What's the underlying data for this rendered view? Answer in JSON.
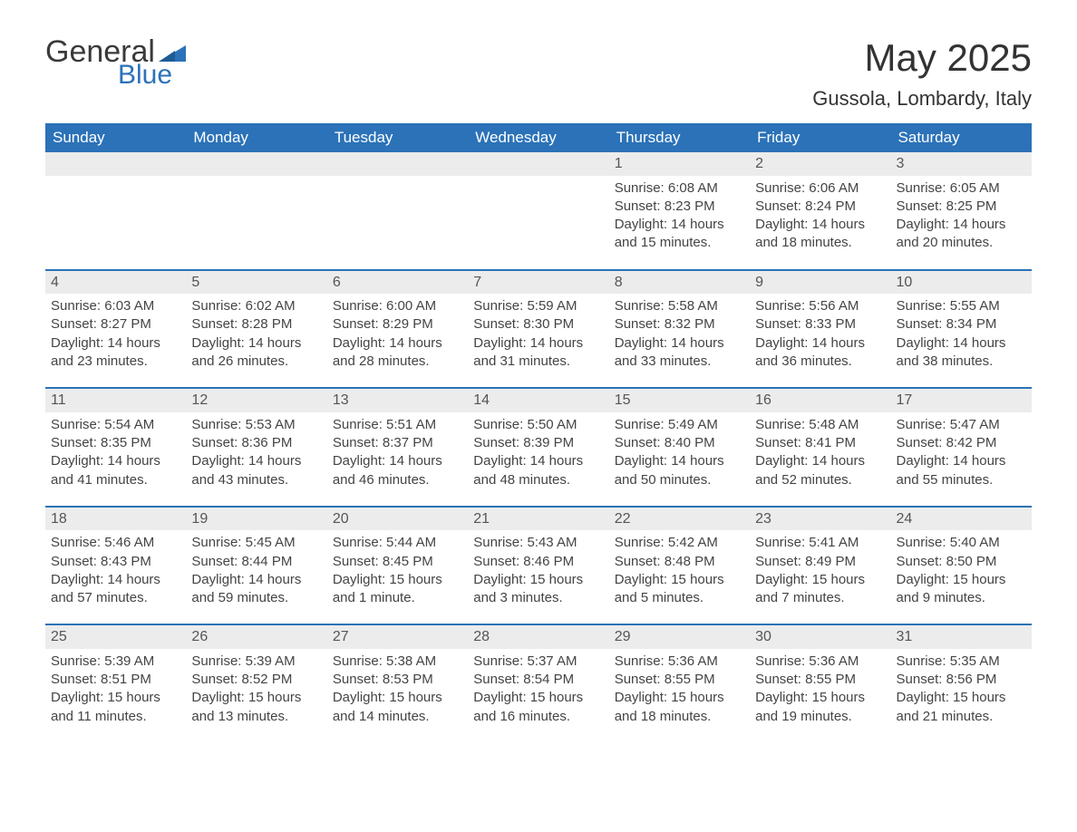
{
  "logo": {
    "word1": "General",
    "word2": "Blue",
    "text_color": "#3a3a3a",
    "accent_color": "#2b72b8"
  },
  "title": "May 2025",
  "location": "Gussola, Lombardy, Italy",
  "colors": {
    "header_bg": "#2b72b8",
    "header_text": "#ffffff",
    "daynum_bg": "#ececec",
    "body_text": "#444444",
    "row_divider": "#2b72b8",
    "page_bg": "#ffffff"
  },
  "weekdays": [
    "Sunday",
    "Monday",
    "Tuesday",
    "Wednesday",
    "Thursday",
    "Friday",
    "Saturday"
  ],
  "weeks": [
    [
      null,
      null,
      null,
      null,
      {
        "d": "1",
        "sunrise": "Sunrise: 6:08 AM",
        "sunset": "Sunset: 8:23 PM",
        "daylight": "Daylight: 14 hours and 15 minutes."
      },
      {
        "d": "2",
        "sunrise": "Sunrise: 6:06 AM",
        "sunset": "Sunset: 8:24 PM",
        "daylight": "Daylight: 14 hours and 18 minutes."
      },
      {
        "d": "3",
        "sunrise": "Sunrise: 6:05 AM",
        "sunset": "Sunset: 8:25 PM",
        "daylight": "Daylight: 14 hours and 20 minutes."
      }
    ],
    [
      {
        "d": "4",
        "sunrise": "Sunrise: 6:03 AM",
        "sunset": "Sunset: 8:27 PM",
        "daylight": "Daylight: 14 hours and 23 minutes."
      },
      {
        "d": "5",
        "sunrise": "Sunrise: 6:02 AM",
        "sunset": "Sunset: 8:28 PM",
        "daylight": "Daylight: 14 hours and 26 minutes."
      },
      {
        "d": "6",
        "sunrise": "Sunrise: 6:00 AM",
        "sunset": "Sunset: 8:29 PM",
        "daylight": "Daylight: 14 hours and 28 minutes."
      },
      {
        "d": "7",
        "sunrise": "Sunrise: 5:59 AM",
        "sunset": "Sunset: 8:30 PM",
        "daylight": "Daylight: 14 hours and 31 minutes."
      },
      {
        "d": "8",
        "sunrise": "Sunrise: 5:58 AM",
        "sunset": "Sunset: 8:32 PM",
        "daylight": "Daylight: 14 hours and 33 minutes."
      },
      {
        "d": "9",
        "sunrise": "Sunrise: 5:56 AM",
        "sunset": "Sunset: 8:33 PM",
        "daylight": "Daylight: 14 hours and 36 minutes."
      },
      {
        "d": "10",
        "sunrise": "Sunrise: 5:55 AM",
        "sunset": "Sunset: 8:34 PM",
        "daylight": "Daylight: 14 hours and 38 minutes."
      }
    ],
    [
      {
        "d": "11",
        "sunrise": "Sunrise: 5:54 AM",
        "sunset": "Sunset: 8:35 PM",
        "daylight": "Daylight: 14 hours and 41 minutes."
      },
      {
        "d": "12",
        "sunrise": "Sunrise: 5:53 AM",
        "sunset": "Sunset: 8:36 PM",
        "daylight": "Daylight: 14 hours and 43 minutes."
      },
      {
        "d": "13",
        "sunrise": "Sunrise: 5:51 AM",
        "sunset": "Sunset: 8:37 PM",
        "daylight": "Daylight: 14 hours and 46 minutes."
      },
      {
        "d": "14",
        "sunrise": "Sunrise: 5:50 AM",
        "sunset": "Sunset: 8:39 PM",
        "daylight": "Daylight: 14 hours and 48 minutes."
      },
      {
        "d": "15",
        "sunrise": "Sunrise: 5:49 AM",
        "sunset": "Sunset: 8:40 PM",
        "daylight": "Daylight: 14 hours and 50 minutes."
      },
      {
        "d": "16",
        "sunrise": "Sunrise: 5:48 AM",
        "sunset": "Sunset: 8:41 PM",
        "daylight": "Daylight: 14 hours and 52 minutes."
      },
      {
        "d": "17",
        "sunrise": "Sunrise: 5:47 AM",
        "sunset": "Sunset: 8:42 PM",
        "daylight": "Daylight: 14 hours and 55 minutes."
      }
    ],
    [
      {
        "d": "18",
        "sunrise": "Sunrise: 5:46 AM",
        "sunset": "Sunset: 8:43 PM",
        "daylight": "Daylight: 14 hours and 57 minutes."
      },
      {
        "d": "19",
        "sunrise": "Sunrise: 5:45 AM",
        "sunset": "Sunset: 8:44 PM",
        "daylight": "Daylight: 14 hours and 59 minutes."
      },
      {
        "d": "20",
        "sunrise": "Sunrise: 5:44 AM",
        "sunset": "Sunset: 8:45 PM",
        "daylight": "Daylight: 15 hours and 1 minute."
      },
      {
        "d": "21",
        "sunrise": "Sunrise: 5:43 AM",
        "sunset": "Sunset: 8:46 PM",
        "daylight": "Daylight: 15 hours and 3 minutes."
      },
      {
        "d": "22",
        "sunrise": "Sunrise: 5:42 AM",
        "sunset": "Sunset: 8:48 PM",
        "daylight": "Daylight: 15 hours and 5 minutes."
      },
      {
        "d": "23",
        "sunrise": "Sunrise: 5:41 AM",
        "sunset": "Sunset: 8:49 PM",
        "daylight": "Daylight: 15 hours and 7 minutes."
      },
      {
        "d": "24",
        "sunrise": "Sunrise: 5:40 AM",
        "sunset": "Sunset: 8:50 PM",
        "daylight": "Daylight: 15 hours and 9 minutes."
      }
    ],
    [
      {
        "d": "25",
        "sunrise": "Sunrise: 5:39 AM",
        "sunset": "Sunset: 8:51 PM",
        "daylight": "Daylight: 15 hours and 11 minutes."
      },
      {
        "d": "26",
        "sunrise": "Sunrise: 5:39 AM",
        "sunset": "Sunset: 8:52 PM",
        "daylight": "Daylight: 15 hours and 13 minutes."
      },
      {
        "d": "27",
        "sunrise": "Sunrise: 5:38 AM",
        "sunset": "Sunset: 8:53 PM",
        "daylight": "Daylight: 15 hours and 14 minutes."
      },
      {
        "d": "28",
        "sunrise": "Sunrise: 5:37 AM",
        "sunset": "Sunset: 8:54 PM",
        "daylight": "Daylight: 15 hours and 16 minutes."
      },
      {
        "d": "29",
        "sunrise": "Sunrise: 5:36 AM",
        "sunset": "Sunset: 8:55 PM",
        "daylight": "Daylight: 15 hours and 18 minutes."
      },
      {
        "d": "30",
        "sunrise": "Sunrise: 5:36 AM",
        "sunset": "Sunset: 8:55 PM",
        "daylight": "Daylight: 15 hours and 19 minutes."
      },
      {
        "d": "31",
        "sunrise": "Sunrise: 5:35 AM",
        "sunset": "Sunset: 8:56 PM",
        "daylight": "Daylight: 15 hours and 21 minutes."
      }
    ]
  ]
}
